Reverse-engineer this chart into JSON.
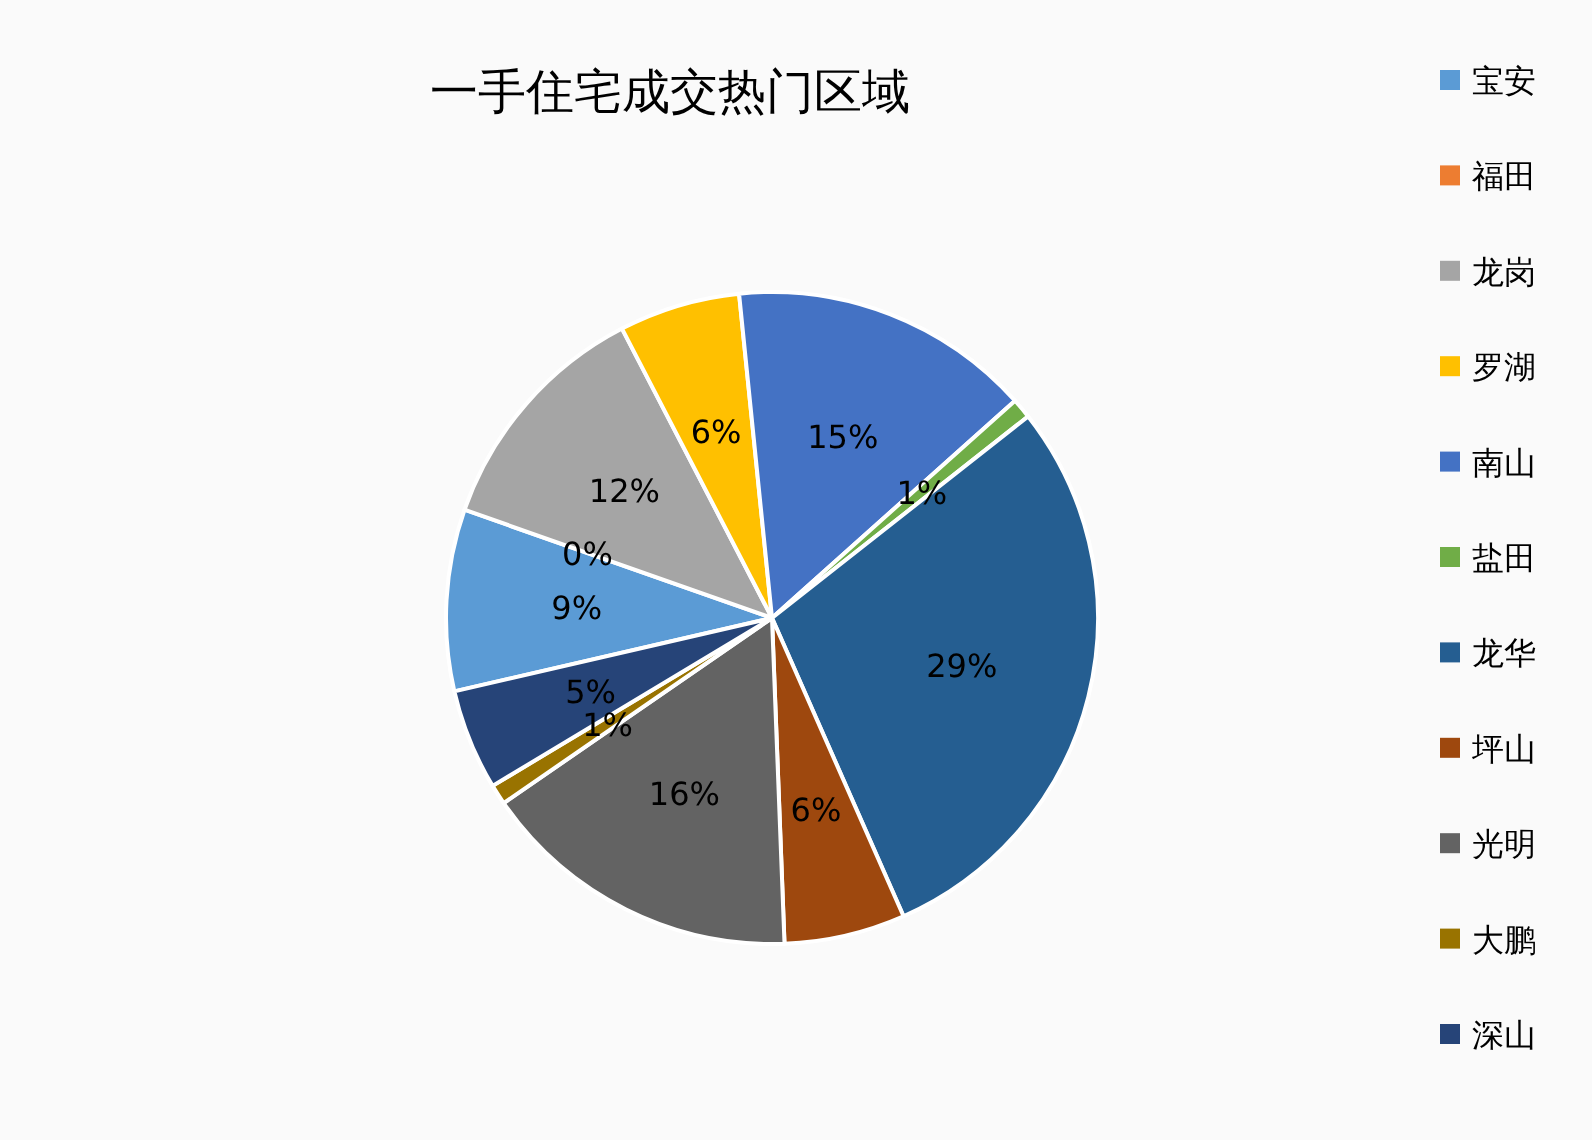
{
  "chart_data": {
    "type": "pie",
    "title": "一手住宅成交热门区域",
    "categories": [
      "宝安",
      "福田",
      "龙岗",
      "罗湖",
      "南山",
      "盐田",
      "龙华",
      "坪山",
      "光明",
      "大鹏",
      "深山"
    ],
    "values": [
      9,
      0,
      12,
      6,
      15,
      1,
      29,
      6,
      16,
      1,
      5
    ],
    "colors": [
      "#5b9bd5",
      "#ed7d31",
      "#a5a5a5",
      "#ffc000",
      "#4472c4",
      "#70ad47",
      "#255e91",
      "#9e480e",
      "#636363",
      "#997300",
      "#264478"
    ],
    "value_labels": [
      "9%",
      "0%",
      "12%",
      "6%",
      "15%",
      "1%",
      "29%",
      "6%",
      "16%",
      "1%",
      "5%"
    ],
    "legend": "right"
  }
}
